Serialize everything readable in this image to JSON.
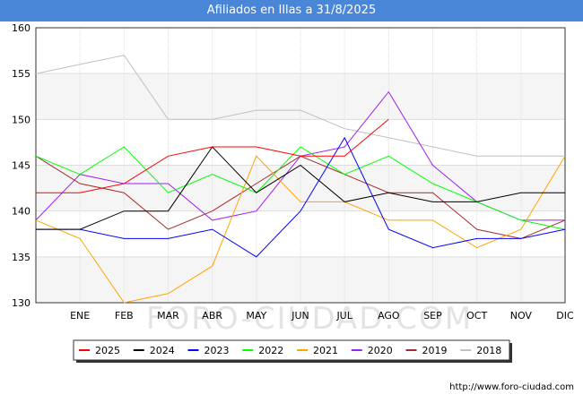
{
  "title": "Afiliados en Illas a 31/8/2025",
  "footer_url": "http://www.foro-ciudad.com",
  "watermark": "FORO-CIUDAD.COM",
  "chart_data": {
    "type": "line",
    "title": "Afiliados en Illas a 31/8/2025",
    "xlabel": "",
    "ylabel": "",
    "categories": [
      "",
      "ENE",
      "FEB",
      "MAR",
      "ABR",
      "MAY",
      "JUN",
      "JUL",
      "AGO",
      "SEP",
      "OCT",
      "NOV",
      "DIC"
    ],
    "ylim": [
      130,
      160
    ],
    "yticks": [
      130,
      135,
      140,
      145,
      150,
      155,
      160
    ],
    "grid": true,
    "legend_position": "bottom",
    "series": [
      {
        "name": "2025",
        "color": "#ff0000",
        "values": [
          142,
          142,
          143,
          146,
          147,
          147,
          146,
          146,
          150,
          null,
          null,
          null,
          null
        ]
      },
      {
        "name": "2024",
        "color": "#000000",
        "values": [
          138,
          138,
          140,
          140,
          147,
          142,
          145,
          141,
          142,
          141,
          141,
          142,
          142
        ]
      },
      {
        "name": "2023",
        "color": "#0000ff",
        "values": [
          138,
          138,
          137,
          137,
          138,
          135,
          140,
          148,
          138,
          136,
          137,
          137,
          138
        ]
      },
      {
        "name": "2022",
        "color": "#00ff00",
        "values": [
          146,
          144,
          147,
          142,
          144,
          142,
          147,
          144,
          146,
          143,
          141,
          139,
          138
        ]
      },
      {
        "name": "2021",
        "color": "#ffa500",
        "values": [
          139,
          137,
          130,
          131,
          134,
          146,
          141,
          141,
          139,
          139,
          136,
          138,
          146
        ]
      },
      {
        "name": "2020",
        "color": "#a020f0",
        "values": [
          139,
          144,
          143,
          143,
          139,
          140,
          146,
          147,
          153,
          145,
          141,
          139,
          139
        ]
      },
      {
        "name": "2019",
        "color": "#a52a2a",
        "values": [
          146,
          143,
          142,
          138,
          140,
          143,
          146,
          144,
          142,
          142,
          138,
          137,
          139
        ]
      },
      {
        "name": "2018",
        "color": "#c0c0c0",
        "values": [
          155,
          156,
          157,
          150,
          150,
          151,
          151,
          149,
          148,
          147,
          146,
          146,
          146
        ]
      }
    ]
  }
}
